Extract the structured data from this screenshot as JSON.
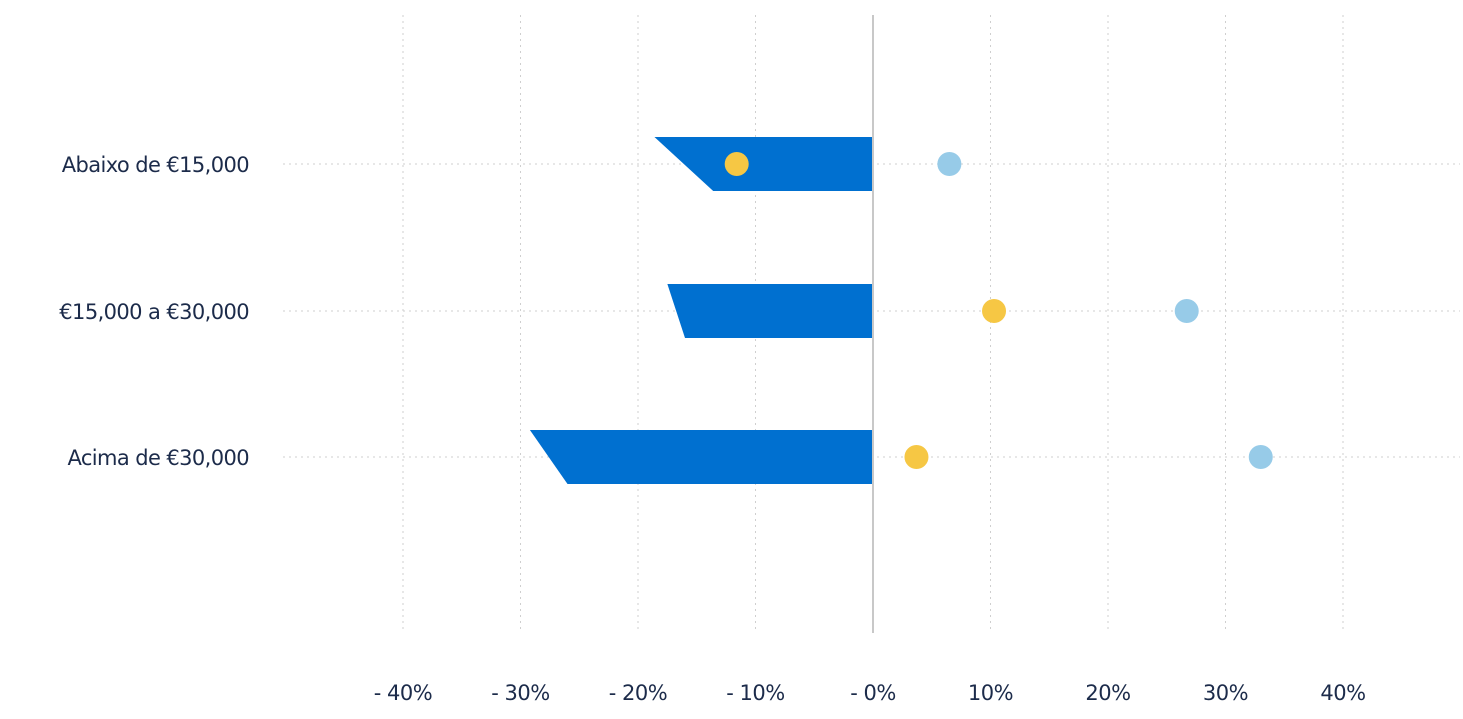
{
  "chart_data": {
    "type": "bar",
    "title": "",
    "xlabel": "",
    "ylabel": "",
    "xlim": [
      -40,
      40
    ],
    "x_ticks": [
      -40,
      -30,
      -20,
      -10,
      0,
      10,
      20,
      30,
      40
    ],
    "x_tick_labels": [
      "- 40%",
      "- 30%",
      "- 20%",
      "- 10%",
      "- 0%",
      "10%",
      "20%",
      "30%",
      "40%"
    ],
    "grid": true,
    "legend": "none",
    "categories": [
      "Abaixo de €15,000",
      "€15,000 a €30,000",
      "Acima de €30,000"
    ],
    "series": [
      {
        "kind": "bar",
        "color": "#0070d0",
        "values_top": [
          -18.6,
          -17.5,
          -29.2
        ],
        "values_bottom": [
          -13.6,
          -16.0,
          -26.0
        ]
      },
      {
        "kind": "dot",
        "color": "#f6c744",
        "values": [
          -11.6,
          10.3,
          3.7
        ]
      },
      {
        "kind": "dot",
        "color": "#97cbe8",
        "values": [
          6.5,
          26.7,
          33.0
        ]
      }
    ]
  }
}
